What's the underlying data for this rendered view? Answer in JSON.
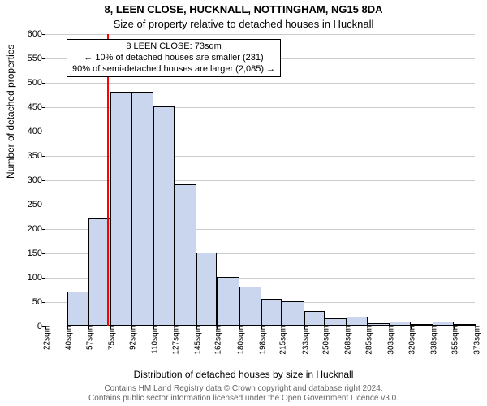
{
  "chart": {
    "type": "histogram",
    "title": "8, LEEN CLOSE, HUCKNALL, NOTTINGHAM, NG15 8DA",
    "subtitle": "Size of property relative to detached houses in Hucknall",
    "ylabel": "Number of detached properties",
    "xlabel": "Distribution of detached houses by size in Hucknall",
    "background_color": "#ffffff",
    "grid_color": "#cccccc",
    "bar_fill_color": "#cad6ed",
    "bar_border_color": "#000000",
    "reference_line_color": "#ff0000",
    "reference_x": 73,
    "ylim": [
      0,
      600
    ],
    "ytick_step": 50,
    "yticks": [
      0,
      50,
      100,
      150,
      200,
      250,
      300,
      350,
      400,
      450,
      500,
      550,
      600
    ],
    "xticks": [
      "22sqm",
      "40sqm",
      "57sqm",
      "75sqm",
      "92sqm",
      "110sqm",
      "127sqm",
      "145sqm",
      "162sqm",
      "180sqm",
      "198sqm",
      "215sqm",
      "233sqm",
      "250sqm",
      "268sqm",
      "285sqm",
      "303sqm",
      "320sqm",
      "338sqm",
      "355sqm",
      "373sqm"
    ],
    "xtick_values": [
      22,
      40,
      57,
      75,
      92,
      110,
      127,
      145,
      162,
      180,
      198,
      215,
      233,
      250,
      268,
      285,
      303,
      320,
      338,
      355,
      373
    ],
    "x_range": [
      22,
      373
    ],
    "bars": [
      {
        "x0": 40,
        "x1": 57,
        "value": 70
      },
      {
        "x0": 57,
        "x1": 75,
        "value": 220
      },
      {
        "x0": 75,
        "x1": 92,
        "value": 480
      },
      {
        "x0": 92,
        "x1": 110,
        "value": 480
      },
      {
        "x0": 110,
        "x1": 127,
        "value": 450
      },
      {
        "x0": 127,
        "x1": 145,
        "value": 290
      },
      {
        "x0": 145,
        "x1": 162,
        "value": 150
      },
      {
        "x0": 162,
        "x1": 180,
        "value": 100
      },
      {
        "x0": 180,
        "x1": 198,
        "value": 80
      },
      {
        "x0": 198,
        "x1": 215,
        "value": 55
      },
      {
        "x0": 215,
        "x1": 233,
        "value": 50
      },
      {
        "x0": 233,
        "x1": 250,
        "value": 30
      },
      {
        "x0": 250,
        "x1": 268,
        "value": 15
      },
      {
        "x0": 268,
        "x1": 285,
        "value": 18
      },
      {
        "x0": 285,
        "x1": 303,
        "value": 5
      },
      {
        "x0": 303,
        "x1": 320,
        "value": 8
      },
      {
        "x0": 320,
        "x1": 338,
        "value": 3
      },
      {
        "x0": 338,
        "x1": 355,
        "value": 8
      },
      {
        "x0": 355,
        "x1": 373,
        "value": 3
      }
    ],
    "legend": {
      "line1": "8 LEEN CLOSE: 73sqm",
      "line2": "← 10% of detached houses are smaller (231)",
      "line3": "90% of semi-detached houses are larger (2,085) →"
    },
    "copyright_line1": "Contains HM Land Registry data © Crown copyright and database right 2024.",
    "copyright_line2": "Contains public sector information licensed under the Open Government Licence v3.0."
  }
}
